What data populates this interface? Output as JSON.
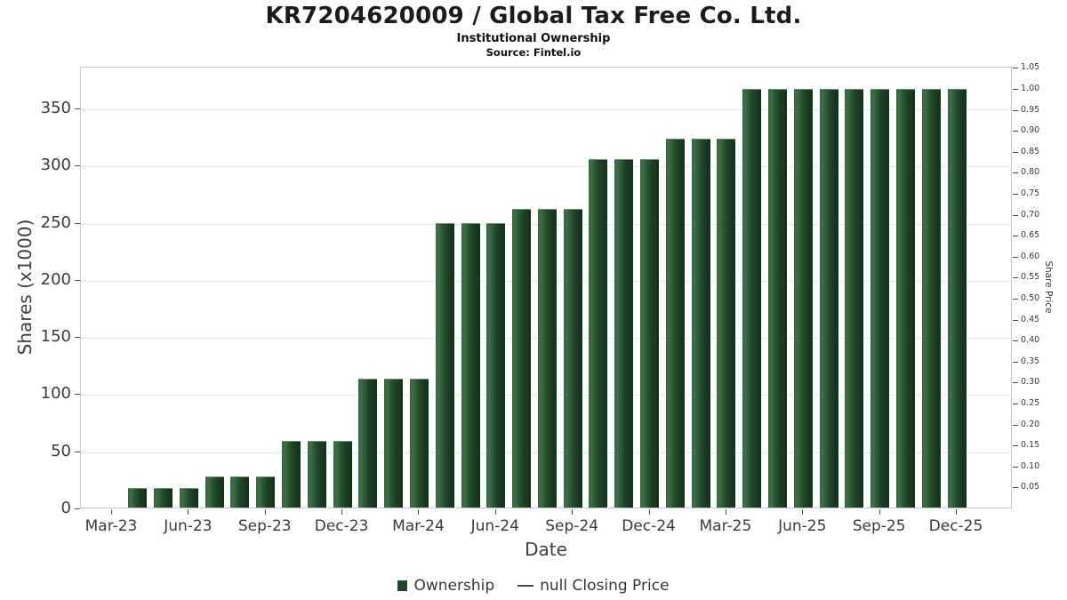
{
  "chart_data": {
    "type": "bar",
    "title": "KR7204620009 / Global Tax Free Co. Ltd.",
    "subtitle": "Institutional Ownership",
    "source": "Source: Fintel.io",
    "xlabel": "Date",
    "ylabel_left": "Shares (x1000)",
    "ylabel_right": "Share Price",
    "bar_color": "#1e4627",
    "grid": "horizontal",
    "ylim_left": [
      0,
      386.7
    ],
    "ylim_right": [
      0,
      1.053
    ],
    "left_ticks": [
      0,
      50,
      100,
      150,
      200,
      250,
      300,
      350
    ],
    "right_ticks": [
      0.05,
      0.1,
      0.15,
      0.2,
      0.25,
      0.3,
      0.35,
      0.4,
      0.45,
      0.5,
      0.55,
      0.6,
      0.65,
      0.7,
      0.75,
      0.8,
      0.85,
      0.9,
      0.95,
      1.0,
      1.05
    ],
    "x_tick_labels": [
      "Mar-23",
      "Jun-23",
      "Sep-23",
      "Dec-23",
      "Mar-24",
      "Jun-24",
      "Sep-24",
      "Dec-24",
      "Mar-25",
      "Jun-25",
      "Sep-25",
      "Dec-25"
    ],
    "x_axis_start_month": "Mar-23",
    "x_axis_end_month": "Dec-25",
    "bars": [
      {
        "month": "Apr-23",
        "value": 17
      },
      {
        "month": "May-23",
        "value": 17
      },
      {
        "month": "Jun-23",
        "value": 17
      },
      {
        "month": "Jul-23",
        "value": 27
      },
      {
        "month": "Aug-23",
        "value": 27
      },
      {
        "month": "Sep-23",
        "value": 27
      },
      {
        "month": "Oct-23",
        "value": 58
      },
      {
        "month": "Nov-23",
        "value": 58
      },
      {
        "month": "Dec-23",
        "value": 58
      },
      {
        "month": "Jan-24",
        "value": 113
      },
      {
        "month": "Feb-24",
        "value": 113
      },
      {
        "month": "Mar-24",
        "value": 113
      },
      {
        "month": "Apr-24",
        "value": 249
      },
      {
        "month": "May-24",
        "value": 249
      },
      {
        "month": "Jun-24",
        "value": 249
      },
      {
        "month": "Jul-24",
        "value": 261
      },
      {
        "month": "Aug-24",
        "value": 261
      },
      {
        "month": "Sep-24",
        "value": 261
      },
      {
        "month": "Oct-24",
        "value": 305
      },
      {
        "month": "Nov-24",
        "value": 305
      },
      {
        "month": "Dec-24",
        "value": 305
      },
      {
        "month": "Jan-25",
        "value": 323
      },
      {
        "month": "Feb-25",
        "value": 323
      },
      {
        "month": "Mar-25",
        "value": 323
      },
      {
        "month": "Apr-25",
        "value": 366
      },
      {
        "month": "May-25",
        "value": 366
      },
      {
        "month": "Jun-25",
        "value": 366
      },
      {
        "month": "Jul-25",
        "value": 366
      },
      {
        "month": "Aug-25",
        "value": 366
      },
      {
        "month": "Sep-25",
        "value": 366
      },
      {
        "month": "Oct-25",
        "value": 366
      },
      {
        "month": "Nov-25",
        "value": 366
      },
      {
        "month": "Dec-25",
        "value": 366
      }
    ],
    "legend": [
      {
        "label": "Ownership",
        "marker": "bar",
        "color": "#1e4627"
      },
      {
        "label": "null Closing Price",
        "marker": "line",
        "color": "#4a4a4a"
      }
    ]
  }
}
